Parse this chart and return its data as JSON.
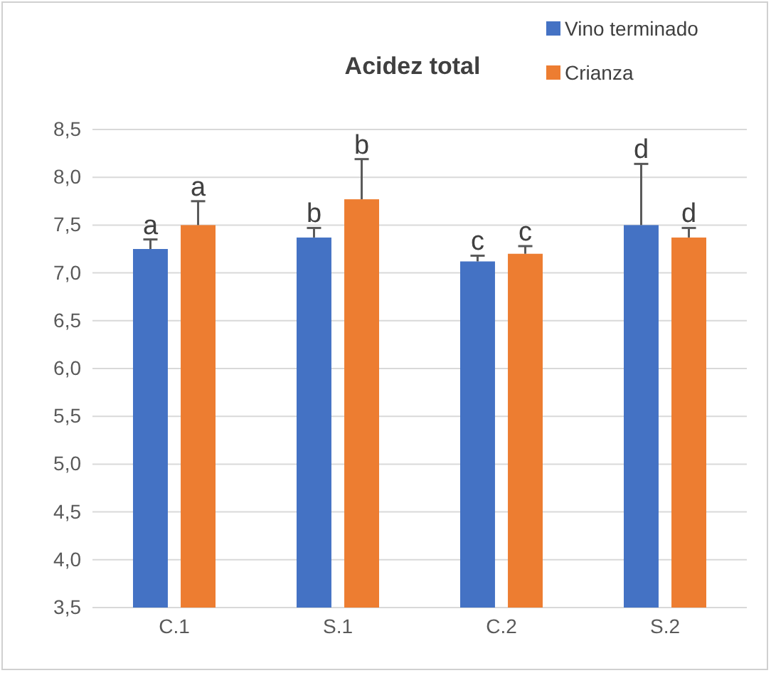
{
  "chart_data": {
    "type": "bar",
    "title": "Acidez total",
    "categories": [
      "C.1",
      "S.1",
      "C.2",
      "S.2"
    ],
    "series": [
      {
        "name": "Vino terminado",
        "color": "#4472c4",
        "values": [
          7.25,
          7.37,
          7.12,
          7.5
        ],
        "errors": [
          [
            7.25,
            7.35
          ],
          [
            7.37,
            7.47
          ],
          [
            7.12,
            7.18
          ],
          [
            7.5,
            8.14
          ]
        ]
      },
      {
        "name": "Crianza",
        "color": "#ed7d31",
        "values": [
          7.5,
          7.77,
          7.2,
          7.37
        ],
        "errors": [
          [
            7.5,
            7.75
          ],
          [
            7.77,
            8.19
          ],
          [
            7.2,
            7.28
          ],
          [
            7.37,
            7.47
          ]
        ]
      }
    ],
    "ylim": [
      3.5,
      8.5
    ],
    "yticks": [
      {
        "value": 3.5,
        "label": "3,5"
      },
      {
        "value": 4,
        "label": "4,0"
      },
      {
        "value": 4.5,
        "label": "4,5"
      },
      {
        "value": 5,
        "label": "5,0"
      },
      {
        "value": 5.5,
        "label": "5,5"
      },
      {
        "value": 6,
        "label": "6,0"
      },
      {
        "value": 6.5,
        "label": "6,5"
      },
      {
        "value": 7,
        "label": "7,0"
      },
      {
        "value": 7.5,
        "label": "7,5"
      },
      {
        "value": 8,
        "label": "8,0"
      },
      {
        "value": 8.5,
        "label": "8,5"
      }
    ],
    "grid": "y",
    "legend": "top right",
    "annotations": [
      "a",
      "a",
      "b",
      "b",
      "c",
      "c",
      "d",
      "d"
    ]
  }
}
